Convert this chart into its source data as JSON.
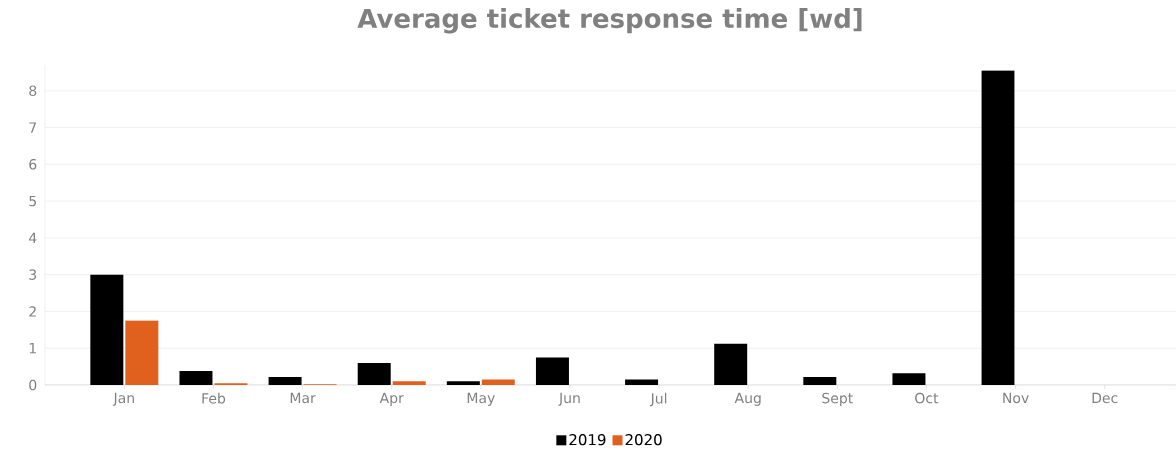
{
  "chart_data": {
    "type": "bar",
    "title": "Average ticket response time [wd]",
    "categories": [
      "Jan",
      "Feb",
      "Mar",
      "Apr",
      "May",
      "Jun",
      "Jul",
      "Aug",
      "Sept",
      "Oct",
      "Nov",
      "Dec"
    ],
    "series": [
      {
        "name": "2019",
        "color": "#000000",
        "values": [
          3.0,
          0.38,
          0.22,
          0.6,
          0.1,
          0.75,
          0.15,
          1.12,
          0.22,
          0.32,
          8.55,
          null
        ]
      },
      {
        "name": "2020",
        "color": "#e0601e",
        "values": [
          1.75,
          0.05,
          0.02,
          0.1,
          0.15,
          null,
          null,
          null,
          null,
          null,
          null,
          null
        ]
      }
    ],
    "ylim": [
      0,
      8.7
    ],
    "yticks": [
      0,
      1,
      2,
      3,
      4,
      5,
      6,
      7,
      8
    ],
    "grid": "y",
    "legend": "bottom"
  }
}
